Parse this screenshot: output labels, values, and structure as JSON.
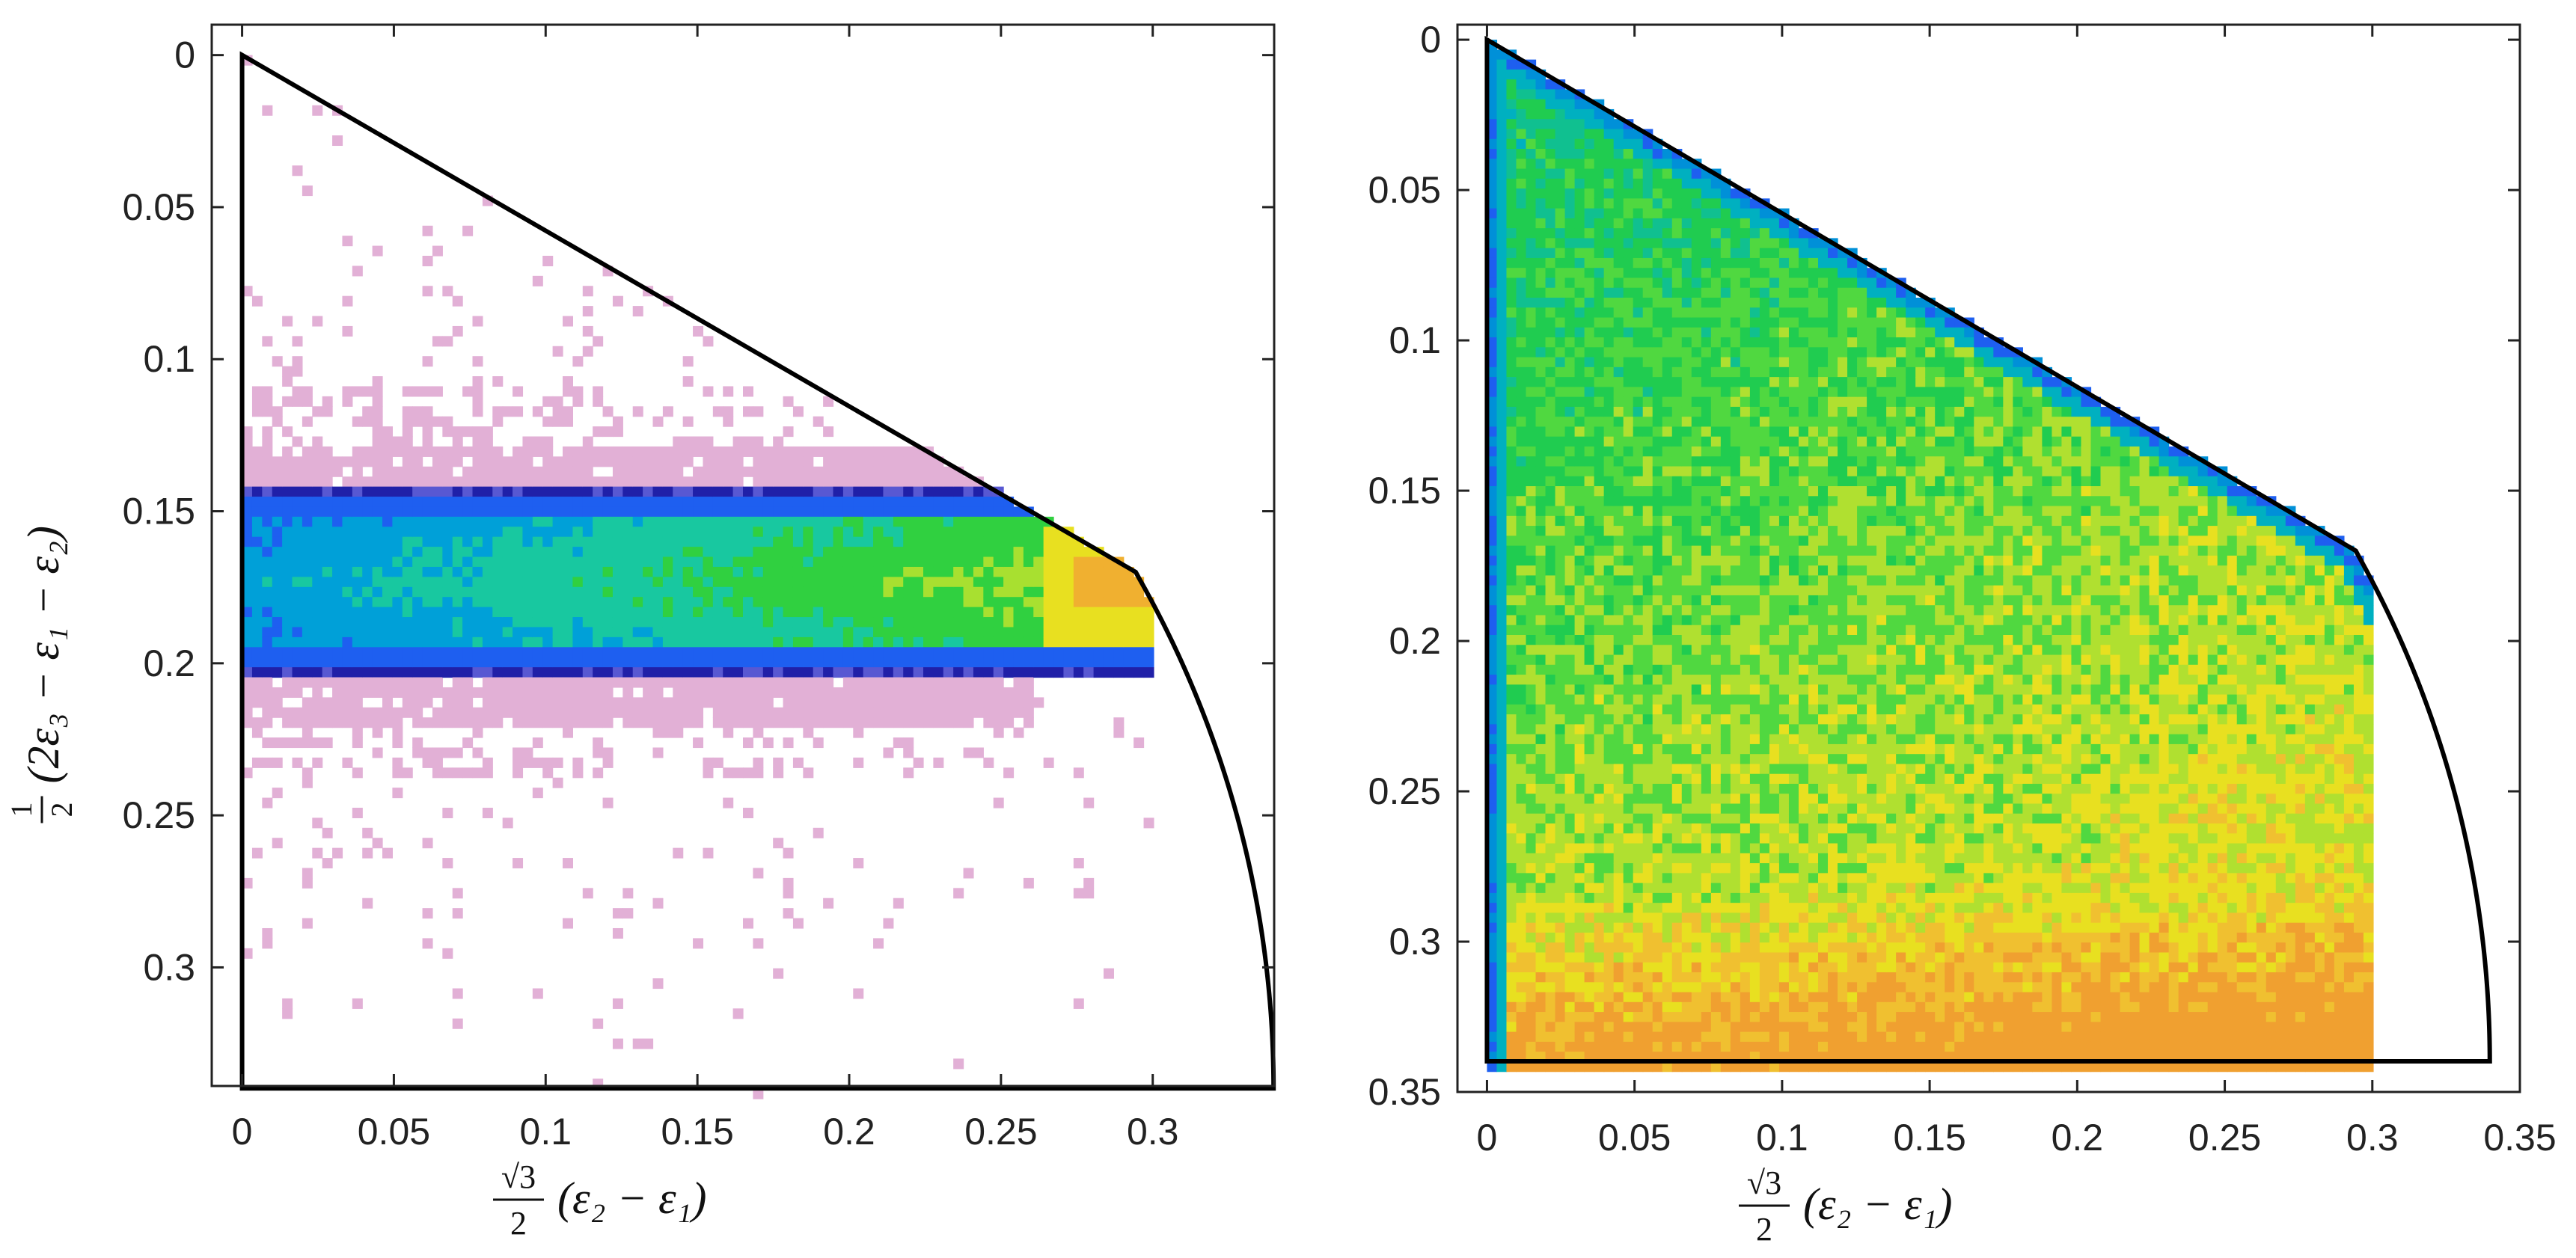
{
  "chart_data": [
    {
      "type": "heatmap",
      "panel": "left",
      "xlabel": "√3/2 (ε₂ − ε₁)",
      "ylabel": "1/2 (2ε₃ − ε₁ − ε₂)",
      "xlim": [
        -0.01,
        0.34
      ],
      "ylim": [
        0.339,
        -0.01
      ],
      "xticks": [
        0,
        0.05,
        0.1,
        0.15,
        0.2,
        0.25,
        0.3
      ],
      "xtick_labels": [
        "0",
        "0.05",
        "0.1",
        "0.15",
        "0.2",
        "0.25",
        "0.3"
      ],
      "yticks": [
        0,
        0.05,
        0.1,
        0.15,
        0.2,
        0.25,
        0.3
      ],
      "ytick_labels": [
        "0",
        "0.05",
        "0.1",
        "0.15",
        "0.2",
        "0.25",
        "0.3"
      ],
      "boundary": {
        "apex": [
          0.2944,
          0.17
        ],
        "ymax": 0.3398
      },
      "density": "horizontal band centred at y≈0.17, dense core y 0.142–0.205, peak near x≈0.28",
      "colormap": [
        "#e2b0d6",
        "#5858d2",
        "#2020a8",
        "#1e5ff0",
        "#00a0d8",
        "#18c8a0",
        "#30d040",
        "#e8e020",
        "#f0b030"
      ]
    },
    {
      "type": "heatmap",
      "panel": "right",
      "xlabel": "√3/2 (ε₂ − ε₁)",
      "xlim": [
        -0.01,
        0.35
      ],
      "ylim": [
        0.35,
        -0.005
      ],
      "xticks": [
        0,
        0.05,
        0.1,
        0.15,
        0.2,
        0.25,
        0.3,
        0.35
      ],
      "xtick_labels": [
        "0",
        "0.05",
        "0.1",
        "0.15",
        "0.2",
        "0.25",
        "0.3",
        "0.35"
      ],
      "yticks": [
        0,
        0.05,
        0.1,
        0.15,
        0.2,
        0.25,
        0.3,
        0.35
      ],
      "ytick_labels": [
        "0",
        "0.05",
        "0.1",
        "0.15",
        "0.2",
        "0.25",
        "0.3",
        "0.35"
      ],
      "boundary": {
        "apex": [
          0.2944,
          0.17
        ],
        "ymax": 0.3398
      },
      "density": "fills the sector, increasing toward the lower arc, peak near x≈0.02, y≈0.33",
      "colormap": [
        "#1e5ff0",
        "#00a0d8",
        "#18c8a0",
        "#30d040",
        "#e8e020",
        "#f0b030"
      ]
    }
  ]
}
